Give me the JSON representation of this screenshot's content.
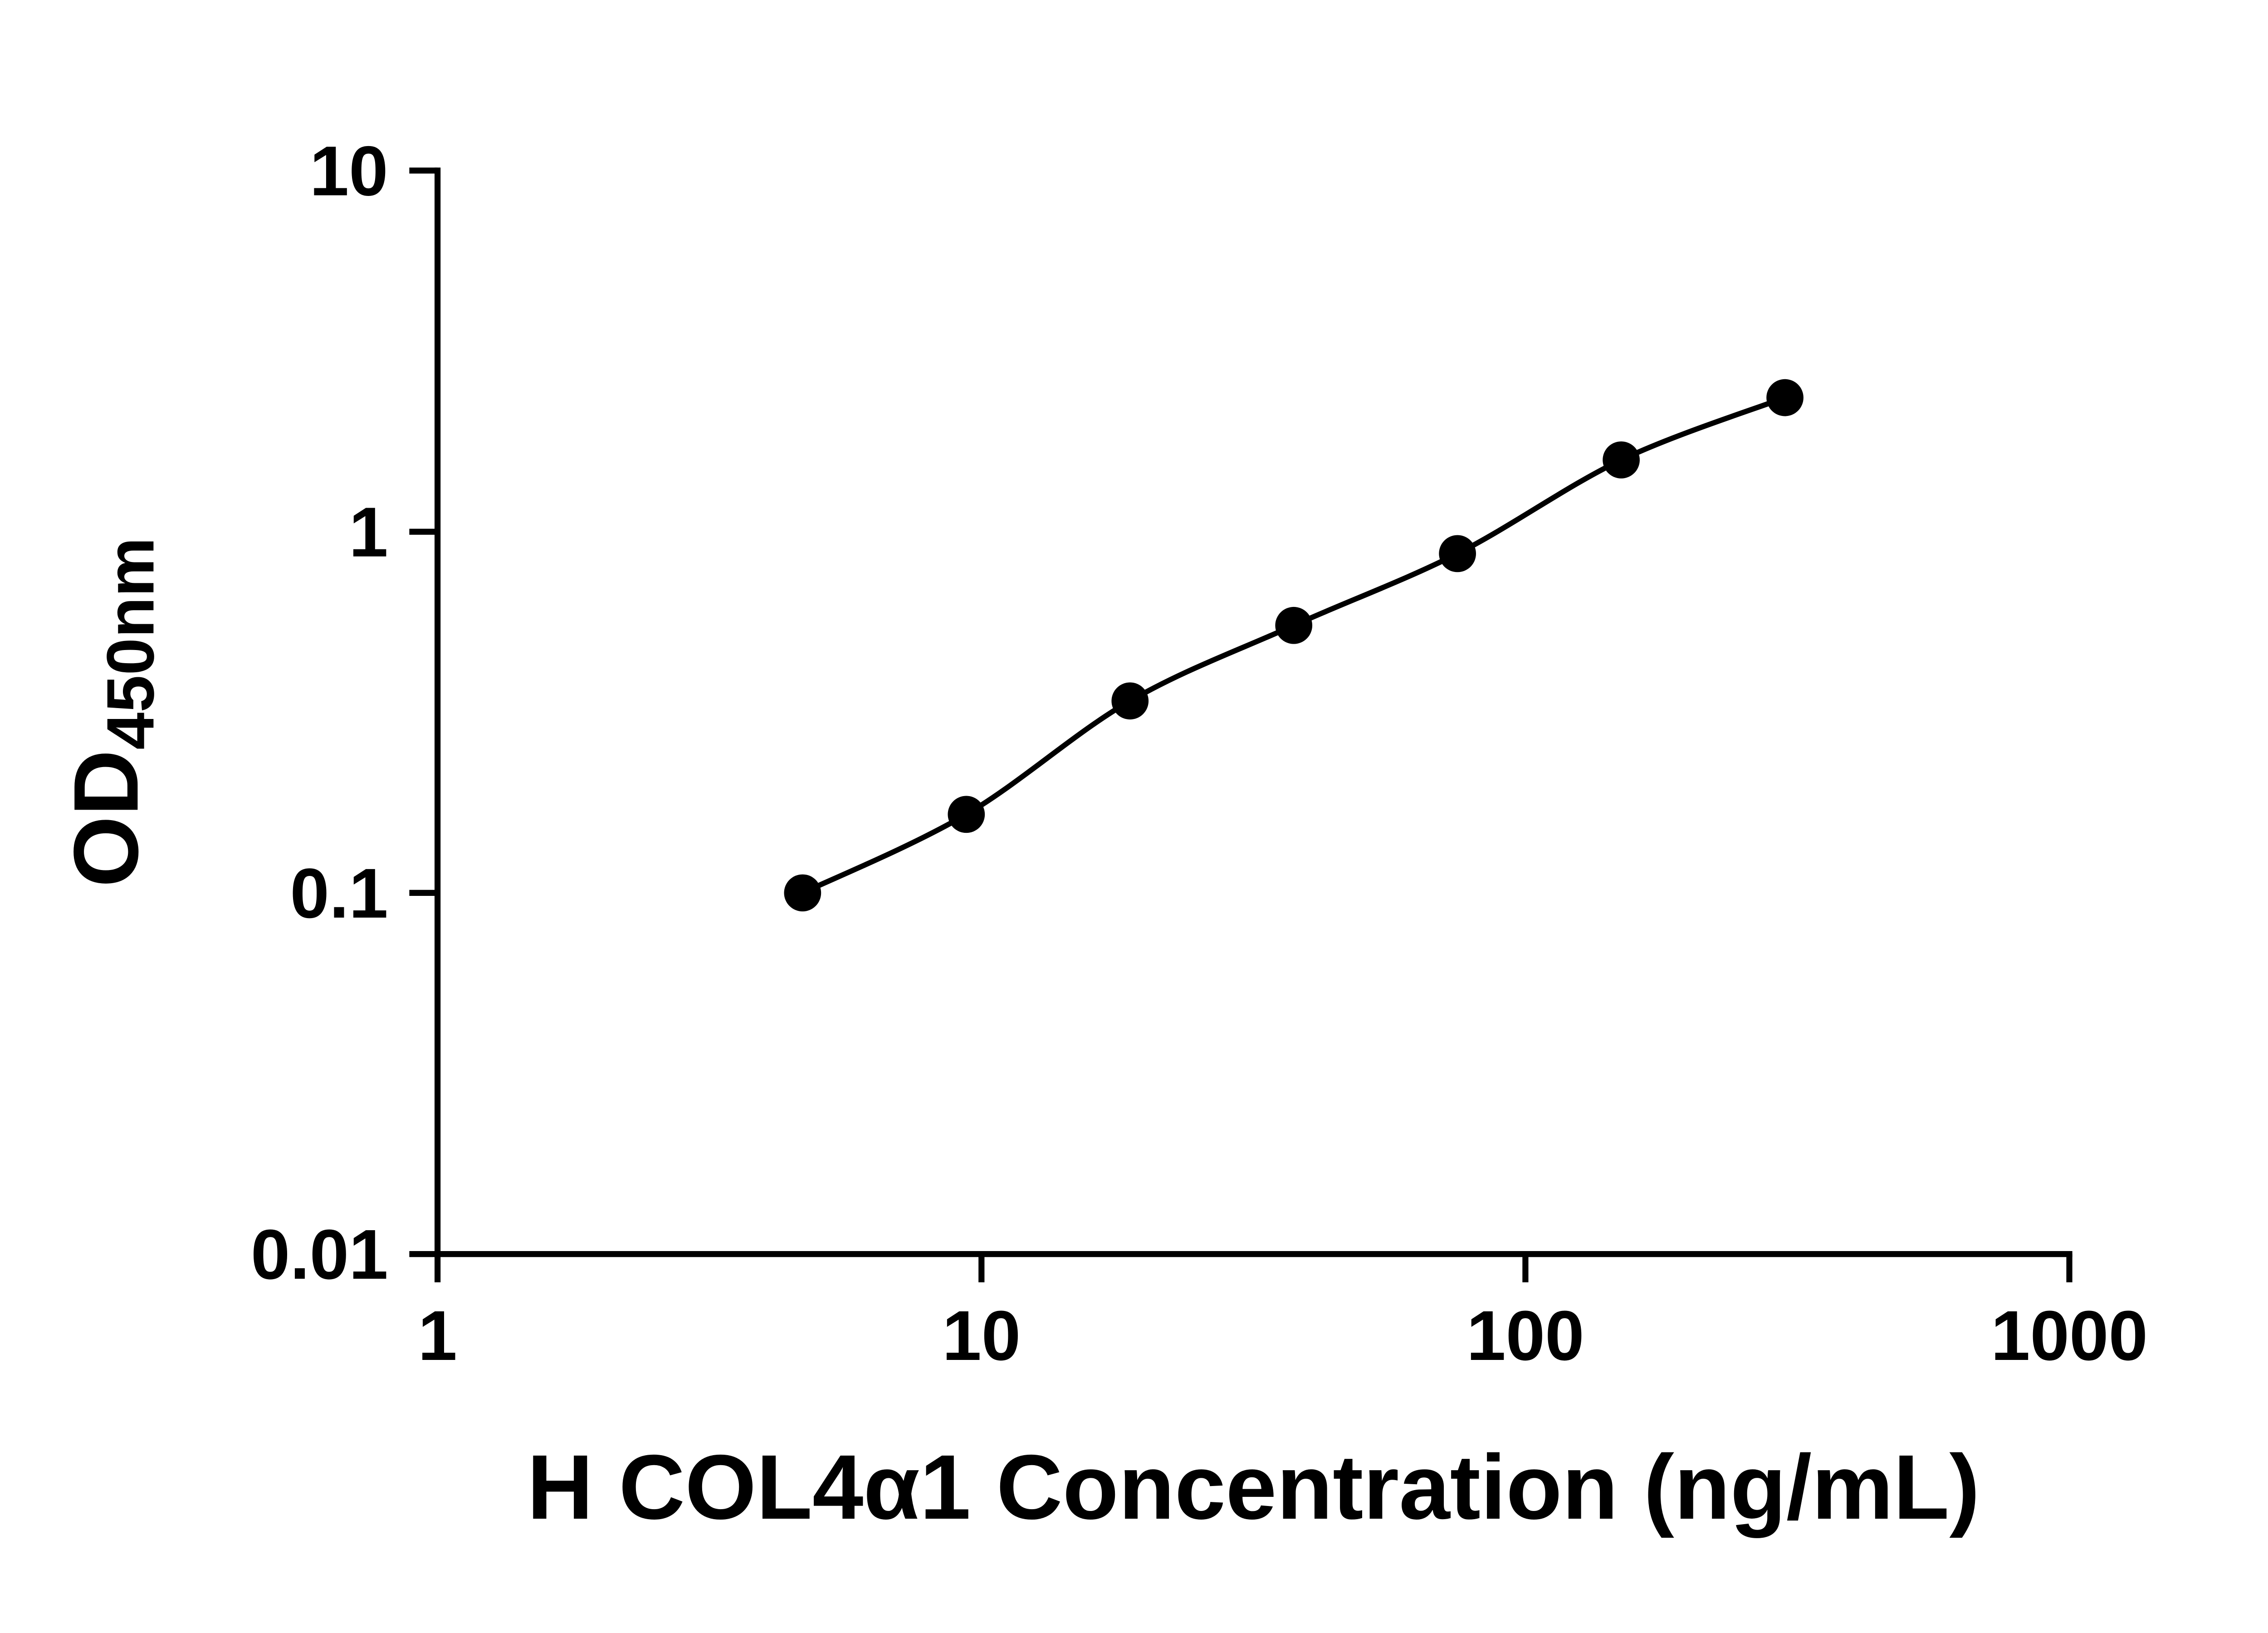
{
  "chart_data": {
    "type": "scatter",
    "title": "",
    "xlabel": "H COL4α1 Concentration (ng/mL)",
    "ylabel": "OD450nm",
    "ylabel_main": "OD",
    "ylabel_sub": "450nm",
    "xscale": "log",
    "yscale": "log",
    "xlim": [
      1,
      1000
    ],
    "ylim": [
      0.01,
      10
    ],
    "x_ticks": [
      1,
      10,
      100,
      1000
    ],
    "x_tick_labels": [
      "1",
      "10",
      "100",
      "1000"
    ],
    "y_ticks": [
      10,
      1,
      0.1,
      0.01
    ],
    "y_tick_labels": [
      "10",
      "1",
      "0.1",
      "0.01"
    ],
    "grid": false,
    "legend": false,
    "series": [
      {
        "x": [
          4.69,
          9.38,
          18.75,
          37.5,
          75,
          150,
          300
        ],
        "y": [
          0.1,
          0.165,
          0.34,
          0.55,
          0.87,
          1.58,
          2.35
        ],
        "marker": "circle",
        "marker_color": "#000000",
        "line_color": "#000000",
        "line_style": "smooth"
      }
    ],
    "axis_color": "#000000",
    "background_color": "#ffffff"
  }
}
